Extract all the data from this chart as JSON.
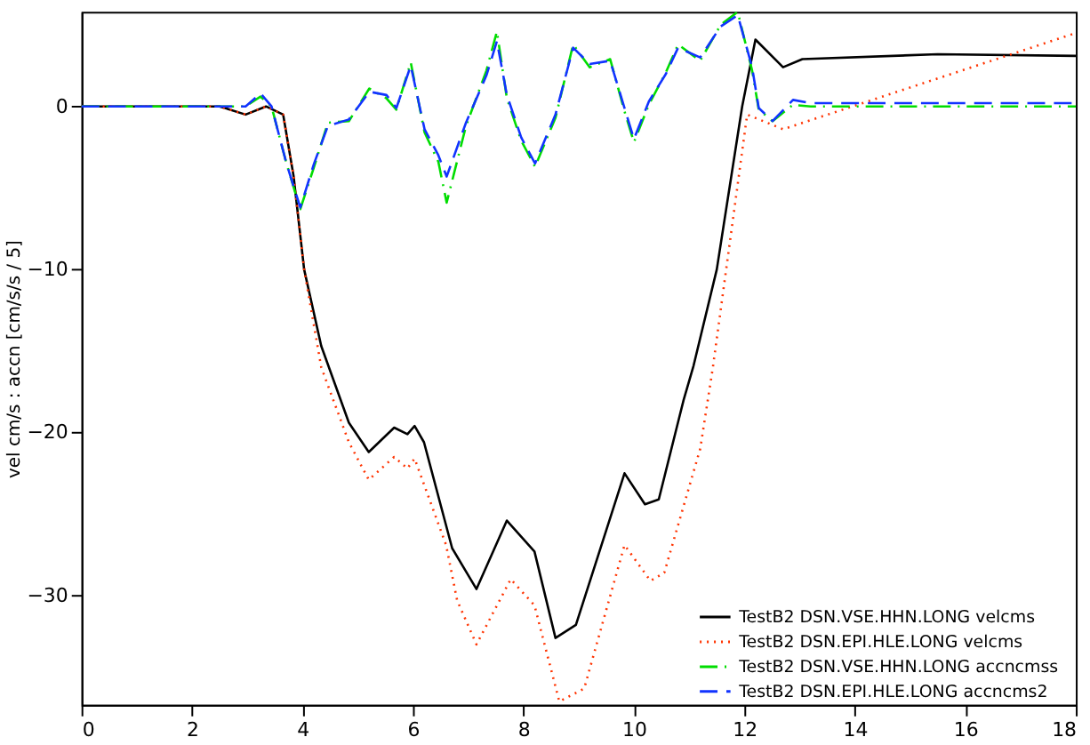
{
  "chart_data": {
    "type": "line",
    "xlim": [
      0,
      18
    ],
    "ylim": [
      -36.7,
      5.8
    ],
    "xticks": [
      0,
      2,
      4,
      6,
      8,
      10,
      12,
      14,
      16,
      18
    ],
    "yticks": [
      0,
      -10,
      -20,
      -30
    ],
    "ylabel": "vel cm/s : accn [cm/s/s / 5]",
    "grid": false,
    "legend": "bottom right",
    "marker": "none",
    "series": [
      {
        "name": "TestB2  DSN.VSE.HHN.LONG  velcms",
        "color": "#000000",
        "line_style": "solid",
        "x": [
          0,
          2.5,
          2.97,
          3.34,
          3.65,
          3.84,
          4.03,
          4.34,
          4.84,
          5.2,
          5.66,
          5.9,
          6.03,
          6.2,
          6.71,
          7.15,
          7.7,
          8.2,
          8.58,
          8.95,
          9.83,
          10.2,
          10.45,
          10.9,
          11.08,
          11.5,
          11.96,
          12.2,
          12.7,
          13.05,
          15.5,
          18
        ],
        "values": [
          0,
          0,
          -0.5,
          0,
          -0.5,
          -4.3,
          -10,
          -14.7,
          -19.4,
          -21.2,
          -19.7,
          -20.1,
          -19.6,
          -20.6,
          -27.1,
          -29.6,
          -25.4,
          -27.3,
          -32.6,
          -31.8,
          -22.5,
          -24.4,
          -24.1,
          -18,
          -15.9,
          -10,
          0,
          4.1,
          2.4,
          2.9,
          3.2,
          3.1
        ]
      },
      {
        "name": "TestB2  DSN.EPI.HLE.LONG  velcms",
        "color": "#ff3300",
        "line_style": "dotted",
        "x": [
          0,
          2.5,
          2.97,
          3.34,
          3.65,
          3.84,
          4.03,
          4.34,
          4.84,
          5.2,
          5.66,
          5.9,
          6.03,
          6.6,
          6.8,
          7.15,
          7.77,
          8.2,
          8.65,
          9.1,
          9.83,
          10.3,
          10.55,
          11.2,
          11.43,
          12.05,
          12.7,
          18
        ],
        "values": [
          0,
          0,
          -0.5,
          0,
          -0.5,
          -4.3,
          -10,
          -16,
          -20.6,
          -22.9,
          -21.5,
          -22.2,
          -21.6,
          -26.9,
          -30.3,
          -33,
          -29,
          -30.6,
          -36.5,
          -35.7,
          -26.9,
          -29.1,
          -28.6,
          -21,
          -16,
          -0.5,
          -1.4,
          4.5
        ]
      },
      {
        "name": "TestB2  DSN.VSE.HHN.LONG  accncmss",
        "color": "#00dd00",
        "line_style": "dashdot",
        "x": [
          0,
          1.84,
          2.97,
          3.24,
          3.44,
          3.71,
          3.96,
          4.21,
          4.46,
          4.84,
          5.21,
          5.52,
          5.7,
          5.96,
          6.21,
          6.46,
          6.61,
          6.96,
          7.33,
          7.52,
          7.7,
          7.96,
          8.21,
          8.58,
          8.9,
          9.2,
          9.57,
          9.83,
          10.0,
          10.27,
          10.58,
          10.8,
          11.2,
          11.57,
          11.88,
          12.14,
          12.26,
          12.51,
          12.88,
          13.2,
          18
        ],
        "values": [
          0,
          0,
          0,
          0.6,
          0,
          -3.5,
          -6.3,
          -3.7,
          -1.0,
          -0.9,
          1.1,
          0.5,
          -0.2,
          2.7,
          -1.6,
          -3.4,
          -5.9,
          -1.2,
          2.2,
          4.6,
          0.5,
          -2.1,
          -3.7,
          -0.7,
          3.8,
          2.4,
          2.9,
          -0.3,
          -2.2,
          0.1,
          2.1,
          3.8,
          2.8,
          5.0,
          5.8,
          2.2,
          -0.2,
          -0.9,
          0.1,
          0,
          0
        ]
      },
      {
        "name": "TestB2  DSN.EPI.HLE.LONG  accncms2",
        "color": "#1133ff",
        "line_style": "dashed",
        "x": [
          0,
          1.84,
          2.97,
          3.24,
          3.44,
          3.71,
          3.96,
          4.21,
          4.46,
          4.84,
          5.21,
          5.52,
          5.7,
          5.96,
          6.21,
          6.46,
          6.61,
          6.96,
          7.33,
          7.52,
          7.7,
          7.96,
          8.21,
          8.58,
          8.9,
          9.2,
          9.57,
          9.83,
          10.0,
          10.27,
          10.58,
          10.8,
          11.2,
          11.57,
          11.88,
          12.14,
          12.26,
          12.51,
          12.88,
          13.2,
          18
        ],
        "values": [
          0,
          0,
          0,
          0.8,
          0,
          -3.5,
          -6.2,
          -3.5,
          -1.2,
          -0.8,
          0.9,
          0.7,
          -0.1,
          2.5,
          -1.4,
          -3.0,
          -4.3,
          -1.0,
          1.9,
          4.0,
          0.7,
          -1.9,
          -3.5,
          -0.5,
          3.6,
          2.6,
          2.8,
          -0.1,
          -2.0,
          0.3,
          2.0,
          3.6,
          3.0,
          4.9,
          5.6,
          2.4,
          -0.1,
          -0.9,
          0.4,
          0.2,
          0.2
        ]
      }
    ]
  }
}
